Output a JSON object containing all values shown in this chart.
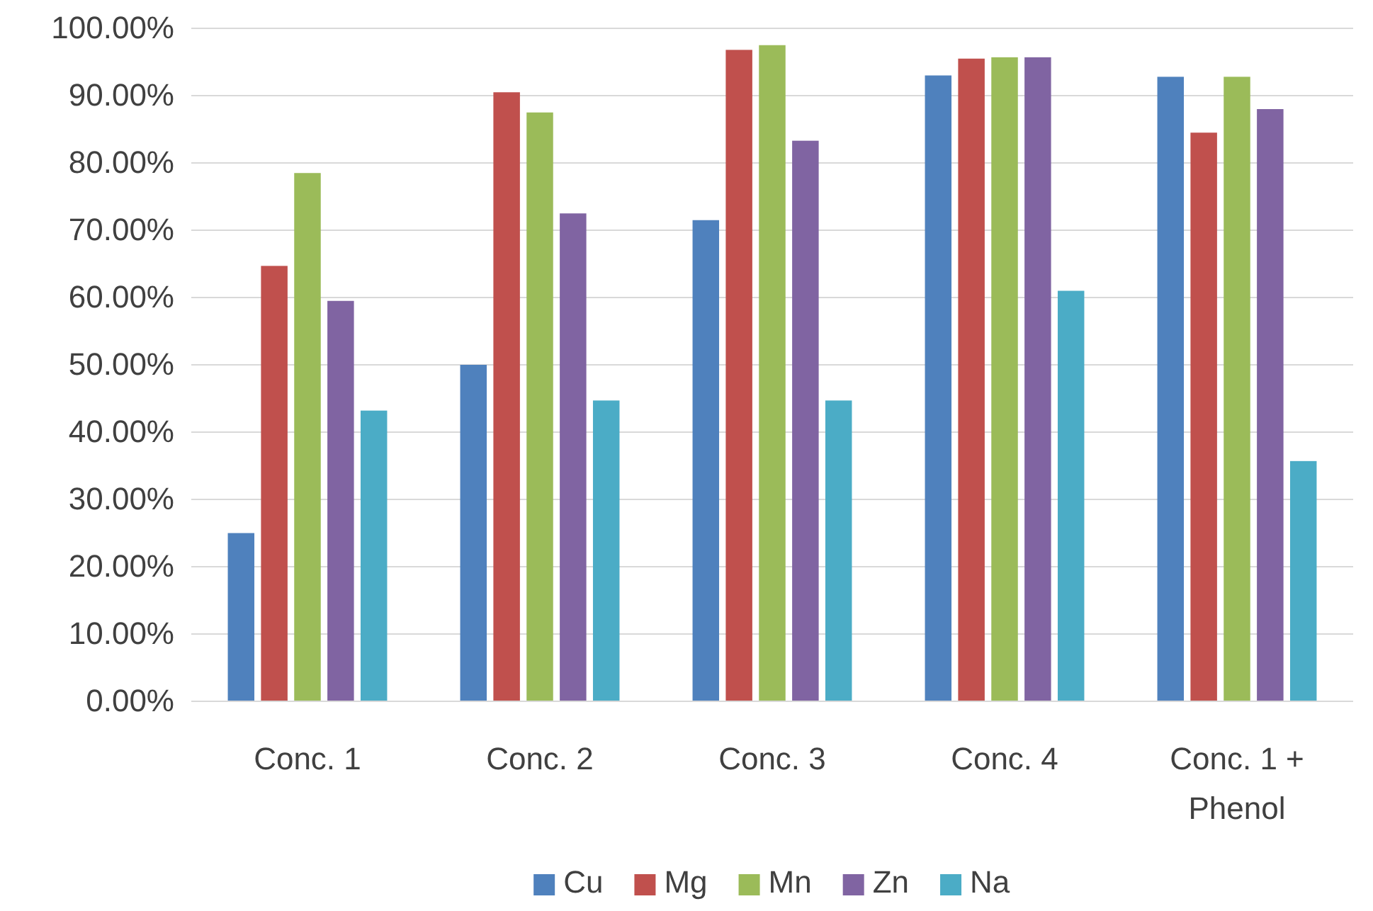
{
  "chart_data": {
    "type": "bar",
    "categories": [
      "Conc. 1",
      "Conc. 2",
      "Conc. 3",
      "Conc. 4",
      "Conc. 1 + Phenol"
    ],
    "series": [
      {
        "name": "Cu",
        "color": "#4f81bd",
        "values": [
          25,
          50,
          71.5,
          93,
          92.8
        ]
      },
      {
        "name": "Mg",
        "color": "#c0504d",
        "values": [
          64.7,
          90.5,
          96.8,
          95.5,
          84.5
        ]
      },
      {
        "name": "Mn",
        "color": "#9bbb59",
        "values": [
          78.5,
          87.5,
          97.5,
          95.7,
          92.8
        ]
      },
      {
        "name": "Zn",
        "color": "#8064a2",
        "values": [
          59.5,
          72.5,
          83.3,
          95.7,
          88
        ]
      },
      {
        "name": "Na",
        "color": "#4bacc6",
        "values": [
          43.2,
          44.7,
          44.7,
          61,
          35.7
        ]
      }
    ],
    "ylim": [
      0,
      100
    ],
    "yticks": [
      {
        "value": 0,
        "label": "0.00%"
      },
      {
        "value": 10,
        "label": "10.00%"
      },
      {
        "value": 20,
        "label": "20.00%"
      },
      {
        "value": 30,
        "label": "30.00%"
      },
      {
        "value": 40,
        "label": "40.00%"
      },
      {
        "value": 50,
        "label": "50.00%"
      },
      {
        "value": 60,
        "label": "60.00%"
      },
      {
        "value": 70,
        "label": "70.00%"
      },
      {
        "value": 80,
        "label": "80.00%"
      },
      {
        "value": 90,
        "label": "90.00%"
      },
      {
        "value": 100,
        "label": "100.00%"
      }
    ],
    "grid": "y",
    "legend": "bottom"
  }
}
